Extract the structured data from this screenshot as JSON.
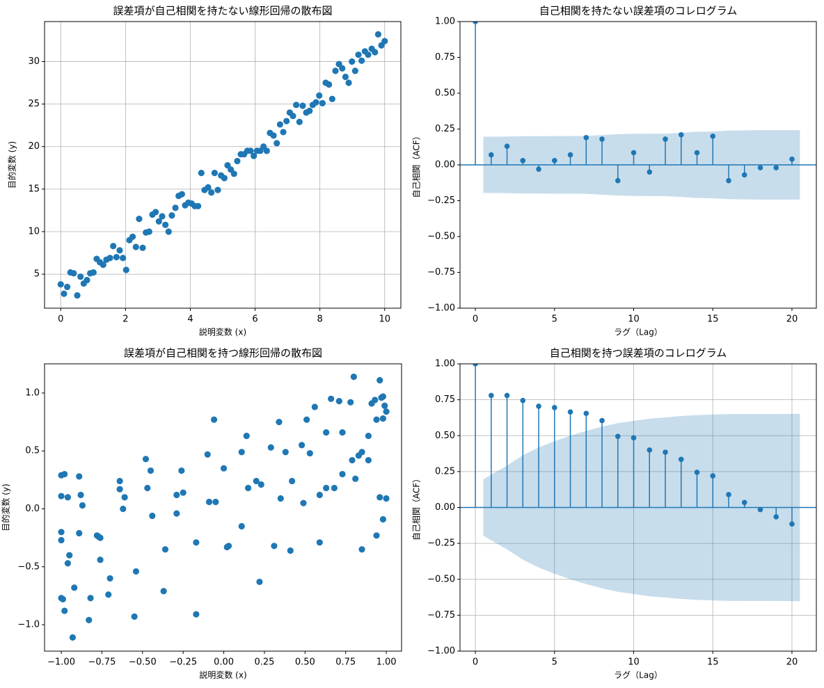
{
  "chart_data": [
    {
      "type": "scatter",
      "title": "誤差項が自己相関を持たない線形回帰の散布図",
      "x_label": "説明変数 (x)",
      "y_label": "目的変数 (y)",
      "color": "#1f77b4",
      "grid": true,
      "x": [
        0,
        0.1,
        0.2,
        0.3,
        0.4,
        0.51,
        0.61,
        0.71,
        0.81,
        0.91,
        1.01,
        1.11,
        1.21,
        1.31,
        1.41,
        1.52,
        1.62,
        1.72,
        1.82,
        1.92,
        2.02,
        2.12,
        2.22,
        2.32,
        2.42,
        2.53,
        2.63,
        2.73,
        2.83,
        2.93,
        3.03,
        3.13,
        3.23,
        3.33,
        3.43,
        3.54,
        3.64,
        3.74,
        3.84,
        3.94,
        4.04,
        4.14,
        4.24,
        4.34,
        4.44,
        4.55,
        4.65,
        4.75,
        4.85,
        4.95,
        5.05,
        5.15,
        5.25,
        5.35,
        5.45,
        5.56,
        5.66,
        5.76,
        5.86,
        5.96,
        6.06,
        6.16,
        6.26,
        6.36,
        6.46,
        6.57,
        6.67,
        6.77,
        6.87,
        6.97,
        7.07,
        7.17,
        7.27,
        7.37,
        7.47,
        7.58,
        7.68,
        7.78,
        7.88,
        7.98,
        8.08,
        8.18,
        8.28,
        8.38,
        8.48,
        8.59,
        8.69,
        8.79,
        8.89,
        8.99,
        9.09,
        9.19,
        9.29,
        9.39,
        9.49,
        9.6,
        9.7,
        9.8,
        9.9,
        10.0
      ],
      "values": [
        3.8,
        2.7,
        3.5,
        5.2,
        5.1,
        2.5,
        4.7,
        3.9,
        4.3,
        5.1,
        5.2,
        6.8,
        6.4,
        6.1,
        6.7,
        6.9,
        8.3,
        7.0,
        7.8,
        6.9,
        5.5,
        9.0,
        9.4,
        8.2,
        11.5,
        8.1,
        9.9,
        10.0,
        12.0,
        12.3,
        11.2,
        11.8,
        10.8,
        10.0,
        11.9,
        12.8,
        14.2,
        14.4,
        13.1,
        13.4,
        13.3,
        13.0,
        13.0,
        16.9,
        14.9,
        15.2,
        14.6,
        16.9,
        14.9,
        16.6,
        16.3,
        17.8,
        17.3,
        16.8,
        18.3,
        19.1,
        19.1,
        19.5,
        19.5,
        18.9,
        19.5,
        19.5,
        20.0,
        19.5,
        21.6,
        21.3,
        20.4,
        22.6,
        21.7,
        23.0,
        24.0,
        23.6,
        24.9,
        22.9,
        24.8,
        24.0,
        24.2,
        24.9,
        25.2,
        26.0,
        25.1,
        27.5,
        27.3,
        25.6,
        28.9,
        29.7,
        29.2,
        28.2,
        27.5,
        30.0,
        28.9,
        30.8,
        30.1,
        31.2,
        30.8,
        31.5,
        31.1,
        33.2,
        31.9,
        32.4
      ],
      "xlim": [
        -0.5,
        10.5
      ],
      "ylim": [
        1.0,
        34.7
      ],
      "xticks": [
        0,
        2,
        4,
        6,
        8,
        10
      ],
      "yticks": [
        5,
        10,
        15,
        20,
        25,
        30
      ]
    },
    {
      "type": "stem",
      "title": "自己相関を持たない誤差項のコレログラム",
      "x_label": "ラグ（Lag）",
      "y_label": "自己相関（ACF）",
      "color": "#1f77b4",
      "grid": false,
      "x": [
        0,
        1,
        2,
        3,
        4,
        5,
        6,
        7,
        8,
        9,
        10,
        11,
        12,
        13,
        14,
        15,
        16,
        17,
        18,
        19,
        20
      ],
      "values": [
        1.0,
        0.07,
        0.13,
        0.03,
        -0.03,
        0.03,
        0.07,
        0.19,
        0.18,
        -0.11,
        0.085,
        -0.05,
        0.18,
        0.21,
        0.085,
        0.2,
        -0.11,
        -0.07,
        -0.02,
        -0.02,
        0.04
      ],
      "band": {
        "x": [
          0.5,
          2,
          3,
          4,
          5,
          6,
          7,
          8,
          9,
          10,
          11,
          12,
          13,
          14,
          15,
          16,
          17,
          18,
          19,
          20.5
        ],
        "upper": [
          0.196,
          0.197,
          0.2,
          0.2,
          0.201,
          0.201,
          0.202,
          0.208,
          0.214,
          0.217,
          0.218,
          0.218,
          0.224,
          0.231,
          0.233,
          0.239,
          0.241,
          0.242,
          0.242,
          0.242
        ],
        "lower": [
          -0.196,
          -0.197,
          -0.2,
          -0.2,
          -0.201,
          -0.201,
          -0.202,
          -0.208,
          -0.214,
          -0.217,
          -0.218,
          -0.218,
          -0.224,
          -0.231,
          -0.233,
          -0.239,
          -0.241,
          -0.242,
          -0.242,
          -0.242
        ]
      },
      "xlim": [
        -0.97,
        21.54
      ],
      "ylim": [
        -1,
        1
      ],
      "xticks": [
        0,
        5,
        10,
        15,
        20
      ],
      "yticks": [
        {
          "value": -1,
          "label": "−1.00"
        },
        {
          "value": -0.75,
          "label": "−0.75"
        },
        {
          "value": -0.5,
          "label": "−0.50"
        },
        {
          "value": -0.25,
          "label": "−0.25"
        },
        {
          "value": 0,
          "label": "0.00"
        },
        {
          "value": 0.25,
          "label": "0.25"
        },
        {
          "value": 0.5,
          "label": "0.50"
        },
        {
          "value": 0.75,
          "label": "0.75"
        },
        {
          "value": 1,
          "label": "1.00"
        }
      ]
    },
    {
      "type": "scatter",
      "title": "誤差項が自己相関を持つ線形回帰の散布図",
      "x_label": "説明変数 (x)",
      "y_label": "目的変数 (y)",
      "color": "#1f77b4",
      "grid": false,
      "x": [
        -1.0,
        -1.0,
        -1.0,
        -1.0,
        -1.0,
        -0.99,
        -0.98,
        -0.98,
        -0.96,
        -0.96,
        -0.95,
        -0.93,
        -0.92,
        -0.89,
        -0.89,
        -0.88,
        -0.87,
        -0.83,
        -0.82,
        -0.78,
        -0.77,
        -0.76,
        -0.76,
        -0.71,
        -0.7,
        -0.64,
        -0.64,
        -0.62,
        -0.61,
        -0.54,
        -0.55,
        -0.48,
        -0.47,
        -0.45,
        -0.44,
        -0.37,
        -0.36,
        -0.29,
        -0.29,
        -0.26,
        -0.25,
        -0.17,
        -0.17,
        -0.1,
        -0.09,
        -0.06,
        -0.05,
        0.0,
        0.02,
        0.03,
        0.11,
        0.11,
        0.14,
        0.15,
        0.2,
        0.22,
        0.23,
        0.29,
        0.31,
        0.34,
        0.35,
        0.38,
        0.41,
        0.42,
        0.48,
        0.49,
        0.51,
        0.53,
        0.56,
        0.59,
        0.59,
        0.63,
        0.63,
        0.66,
        0.68,
        0.71,
        0.73,
        0.73,
        0.78,
        0.79,
        0.8,
        0.81,
        0.83,
        0.85,
        0.85,
        0.89,
        0.89,
        0.91,
        0.93,
        0.94,
        0.94,
        0.96,
        0.96,
        0.97,
        0.98,
        0.98,
        0.98,
        0.99,
        1.0,
        1.0
      ],
      "values": [
        -0.77,
        0.29,
        0.11,
        -0.2,
        -0.27,
        -0.78,
        -0.88,
        0.3,
        -0.47,
        0.1,
        -0.4,
        -1.11,
        -0.68,
        0.28,
        -0.21,
        0.12,
        0.03,
        -0.96,
        -0.77,
        -0.23,
        -0.24,
        -0.44,
        -0.25,
        -0.74,
        -0.6,
        0.24,
        0.17,
        0.0,
        0.1,
        -0.54,
        -0.93,
        0.43,
        0.18,
        0.33,
        -0.06,
        -0.71,
        -0.35,
        0.12,
        -0.04,
        0.33,
        0.14,
        -0.29,
        -0.91,
        0.47,
        0.06,
        0.77,
        0.06,
        0.35,
        -0.33,
        -0.32,
        0.49,
        -0.15,
        0.63,
        0.18,
        0.24,
        -0.63,
        0.21,
        0.53,
        -0.32,
        0.75,
        0.09,
        0.49,
        -0.36,
        0.24,
        0.55,
        0.05,
        0.77,
        0.48,
        0.88,
        -0.29,
        0.12,
        0.66,
        0.18,
        0.95,
        0.18,
        0.93,
        0.3,
        0.66,
        0.92,
        0.42,
        1.14,
        0.26,
        0.46,
        0.49,
        -0.35,
        0.63,
        0.42,
        0.91,
        0.94,
        0.77,
        -0.23,
        1.11,
        0.1,
        0.96,
        0.97,
        0.78,
        -0.09,
        0.89,
        0.84,
        0.09
      ],
      "xlim": [
        -1.103,
        1.094
      ],
      "ylim": [
        -1.228,
        1.252
      ],
      "xticks": [
        {
          "value": -1,
          "label": "−1.00"
        },
        {
          "value": -0.75,
          "label": "−0.75"
        },
        {
          "value": -0.5,
          "label": "−0.50"
        },
        {
          "value": -0.25,
          "label": "−0.25"
        },
        {
          "value": 0,
          "label": "0.00"
        },
        {
          "value": 0.25,
          "label": "0.25"
        },
        {
          "value": 0.5,
          "label": "0.50"
        },
        {
          "value": 0.75,
          "label": "0.75"
        },
        {
          "value": 1,
          "label": "1.00"
        }
      ],
      "yticks": [
        {
          "value": -1,
          "label": "−1.0"
        },
        {
          "value": -0.5,
          "label": "−0.5"
        },
        {
          "value": 0,
          "label": "0.0"
        },
        0.5,
        {
          "value": 1,
          "label": "1.0"
        }
      ]
    },
    {
      "type": "stem",
      "title": "自己相関を持つ誤差項のコレログラム",
      "x_label": "ラグ（Lag）",
      "y_label": "自己相関（ACF）",
      "color": "#1f77b4",
      "grid": true,
      "x": [
        0,
        1,
        2,
        3,
        4,
        5,
        6,
        7,
        8,
        9,
        10,
        11,
        12,
        13,
        14,
        15,
        16,
        17,
        18,
        19,
        20
      ],
      "values": [
        1.0,
        0.78,
        0.78,
        0.745,
        0.705,
        0.695,
        0.665,
        0.655,
        0.605,
        0.495,
        0.485,
        0.4,
        0.385,
        0.335,
        0.245,
        0.22,
        0.09,
        0.035,
        -0.015,
        -0.065,
        -0.115
      ],
      "band": {
        "x": [
          0.5,
          2,
          3,
          4,
          5,
          6,
          7,
          8,
          9,
          10,
          11,
          12,
          13,
          14,
          15,
          16,
          17,
          18,
          19,
          20.5
        ],
        "upper": [
          0.196,
          0.292,
          0.363,
          0.418,
          0.461,
          0.5,
          0.533,
          0.563,
          0.587,
          0.603,
          0.618,
          0.627,
          0.637,
          0.643,
          0.647,
          0.65,
          0.651,
          0.651,
          0.651,
          0.652
        ],
        "lower": [
          -0.196,
          -0.292,
          -0.363,
          -0.418,
          -0.461,
          -0.5,
          -0.533,
          -0.563,
          -0.587,
          -0.603,
          -0.618,
          -0.627,
          -0.637,
          -0.643,
          -0.647,
          -0.65,
          -0.651,
          -0.651,
          -0.651,
          -0.652
        ]
      },
      "xlim": [
        -0.97,
        21.54
      ],
      "ylim": [
        -1,
        1
      ],
      "xticks": [
        0,
        5,
        10,
        15,
        20
      ],
      "yticks": [
        {
          "value": -1,
          "label": "−1.00"
        },
        {
          "value": -0.75,
          "label": "−0.75"
        },
        {
          "value": -0.5,
          "label": "−0.50"
        },
        {
          "value": -0.25,
          "label": "−0.25"
        },
        {
          "value": 0,
          "label": "0.00"
        },
        {
          "value": 0.25,
          "label": "0.25"
        },
        {
          "value": 0.5,
          "label": "0.50"
        },
        {
          "value": 0.75,
          "label": "0.75"
        },
        {
          "value": 1,
          "label": "1.00"
        }
      ]
    }
  ]
}
